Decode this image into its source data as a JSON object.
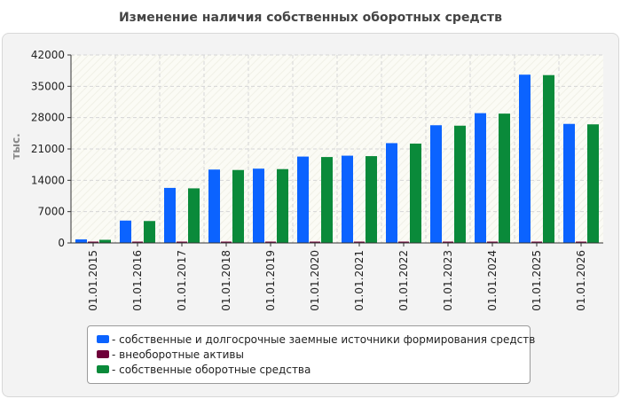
{
  "chart_data": {
    "type": "bar",
    "title": "Изменение наличия собственных оборотных средств",
    "ylabel": "тыс.",
    "xlabel": "",
    "ylim": [
      0,
      42000
    ],
    "yticks": [
      0,
      7000,
      14000,
      21000,
      28000,
      35000,
      42000
    ],
    "categories": [
      "01.01.2015",
      "01.01.2016",
      "01.01.2017",
      "01.01.2018",
      "01.01.2019",
      "01.01.2020",
      "01.01.2021",
      "01.01.2022",
      "01.01.2023",
      "01.01.2024",
      "01.01.2025",
      "01.01.2026"
    ],
    "series": [
      {
        "name": "собственные и долгосрочные заемные источники формирования средств",
        "color": "#0b63ff",
        "values": [
          800,
          5000,
          12300,
          16400,
          16600,
          19300,
          19500,
          22300,
          26300,
          29000,
          37600,
          26600
        ]
      },
      {
        "name": "внеоборотные активы",
        "color": "#6e0039",
        "values": [
          100,
          100,
          100,
          100,
          100,
          100,
          100,
          100,
          100,
          100,
          100,
          100
        ]
      },
      {
        "name": "собственные оборотные средства",
        "color": "#0a8a3a",
        "values": [
          700,
          4900,
          12200,
          16300,
          16500,
          19200,
          19400,
          22200,
          26200,
          28900,
          37500,
          26500
        ]
      }
    ],
    "grid": true,
    "legend_position": "bottom"
  }
}
